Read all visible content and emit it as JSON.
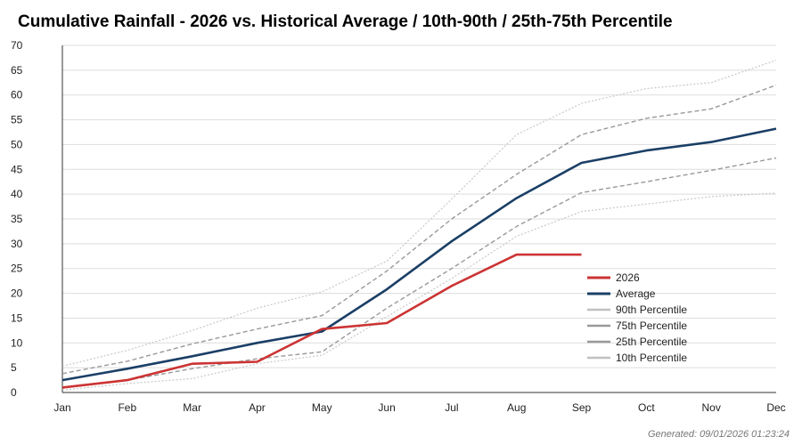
{
  "chart_data": {
    "type": "line",
    "title": "Cumulative Rainfall - 2026  vs. Historical Average / 10th-90th / 25th-75th Percentile",
    "xlabel": "",
    "ylabel": "",
    "categories": [
      "Jan",
      "Feb",
      "Mar",
      "Apr",
      "May",
      "Jun",
      "Jul",
      "Aug",
      "Sep",
      "Oct",
      "Nov",
      "Dec"
    ],
    "ylim": [
      0,
      70
    ],
    "yticks": [
      0,
      5,
      10,
      15,
      20,
      25,
      30,
      35,
      40,
      45,
      50,
      55,
      60,
      65,
      70
    ],
    "grid": true,
    "legend_position": "bottom-right",
    "series": [
      {
        "name": "2026",
        "color": "#cc3333",
        "style": "solid",
        "values": [
          1,
          2.5,
          5.8,
          6.2,
          12.8,
          14,
          21.5,
          27.8,
          27.8,
          null,
          null,
          null
        ]
      },
      {
        "name": "Average",
        "color": "#1b3f66",
        "style": "solid",
        "values": [
          2.5,
          4.8,
          7.3,
          10,
          12.3,
          20.8,
          30.5,
          39.2,
          46.3,
          48.8,
          50.5,
          53.2
        ]
      },
      {
        "name": "90th Percentile",
        "color": "#c8c8c8",
        "style": "dotted",
        "values": [
          5.3,
          8.5,
          12.5,
          17,
          20.3,
          26.5,
          39,
          52,
          58.3,
          61.3,
          62.5,
          67
        ]
      },
      {
        "name": "75th Percentile",
        "color": "#999999",
        "style": "dashed",
        "values": [
          3.8,
          6.3,
          9.8,
          12.8,
          15.5,
          24.5,
          35,
          44,
          52,
          55.3,
          57.2,
          62
        ]
      },
      {
        "name": "25th Percentile",
        "color": "#999999",
        "style": "dashed",
        "values": [
          1,
          2.5,
          4.8,
          6.8,
          8.2,
          17,
          25,
          33.5,
          40.3,
          42.5,
          44.8,
          47.3
        ]
      },
      {
        "name": "10th Percentile",
        "color": "#c8c8c8",
        "style": "dotted",
        "values": [
          0.5,
          1.8,
          2.8,
          5.8,
          7.5,
          15.3,
          23,
          31.5,
          36.5,
          38,
          39.5,
          40.2
        ]
      }
    ]
  },
  "footer": {
    "generated": "Generated: 09/01/2026 01:23:24"
  }
}
